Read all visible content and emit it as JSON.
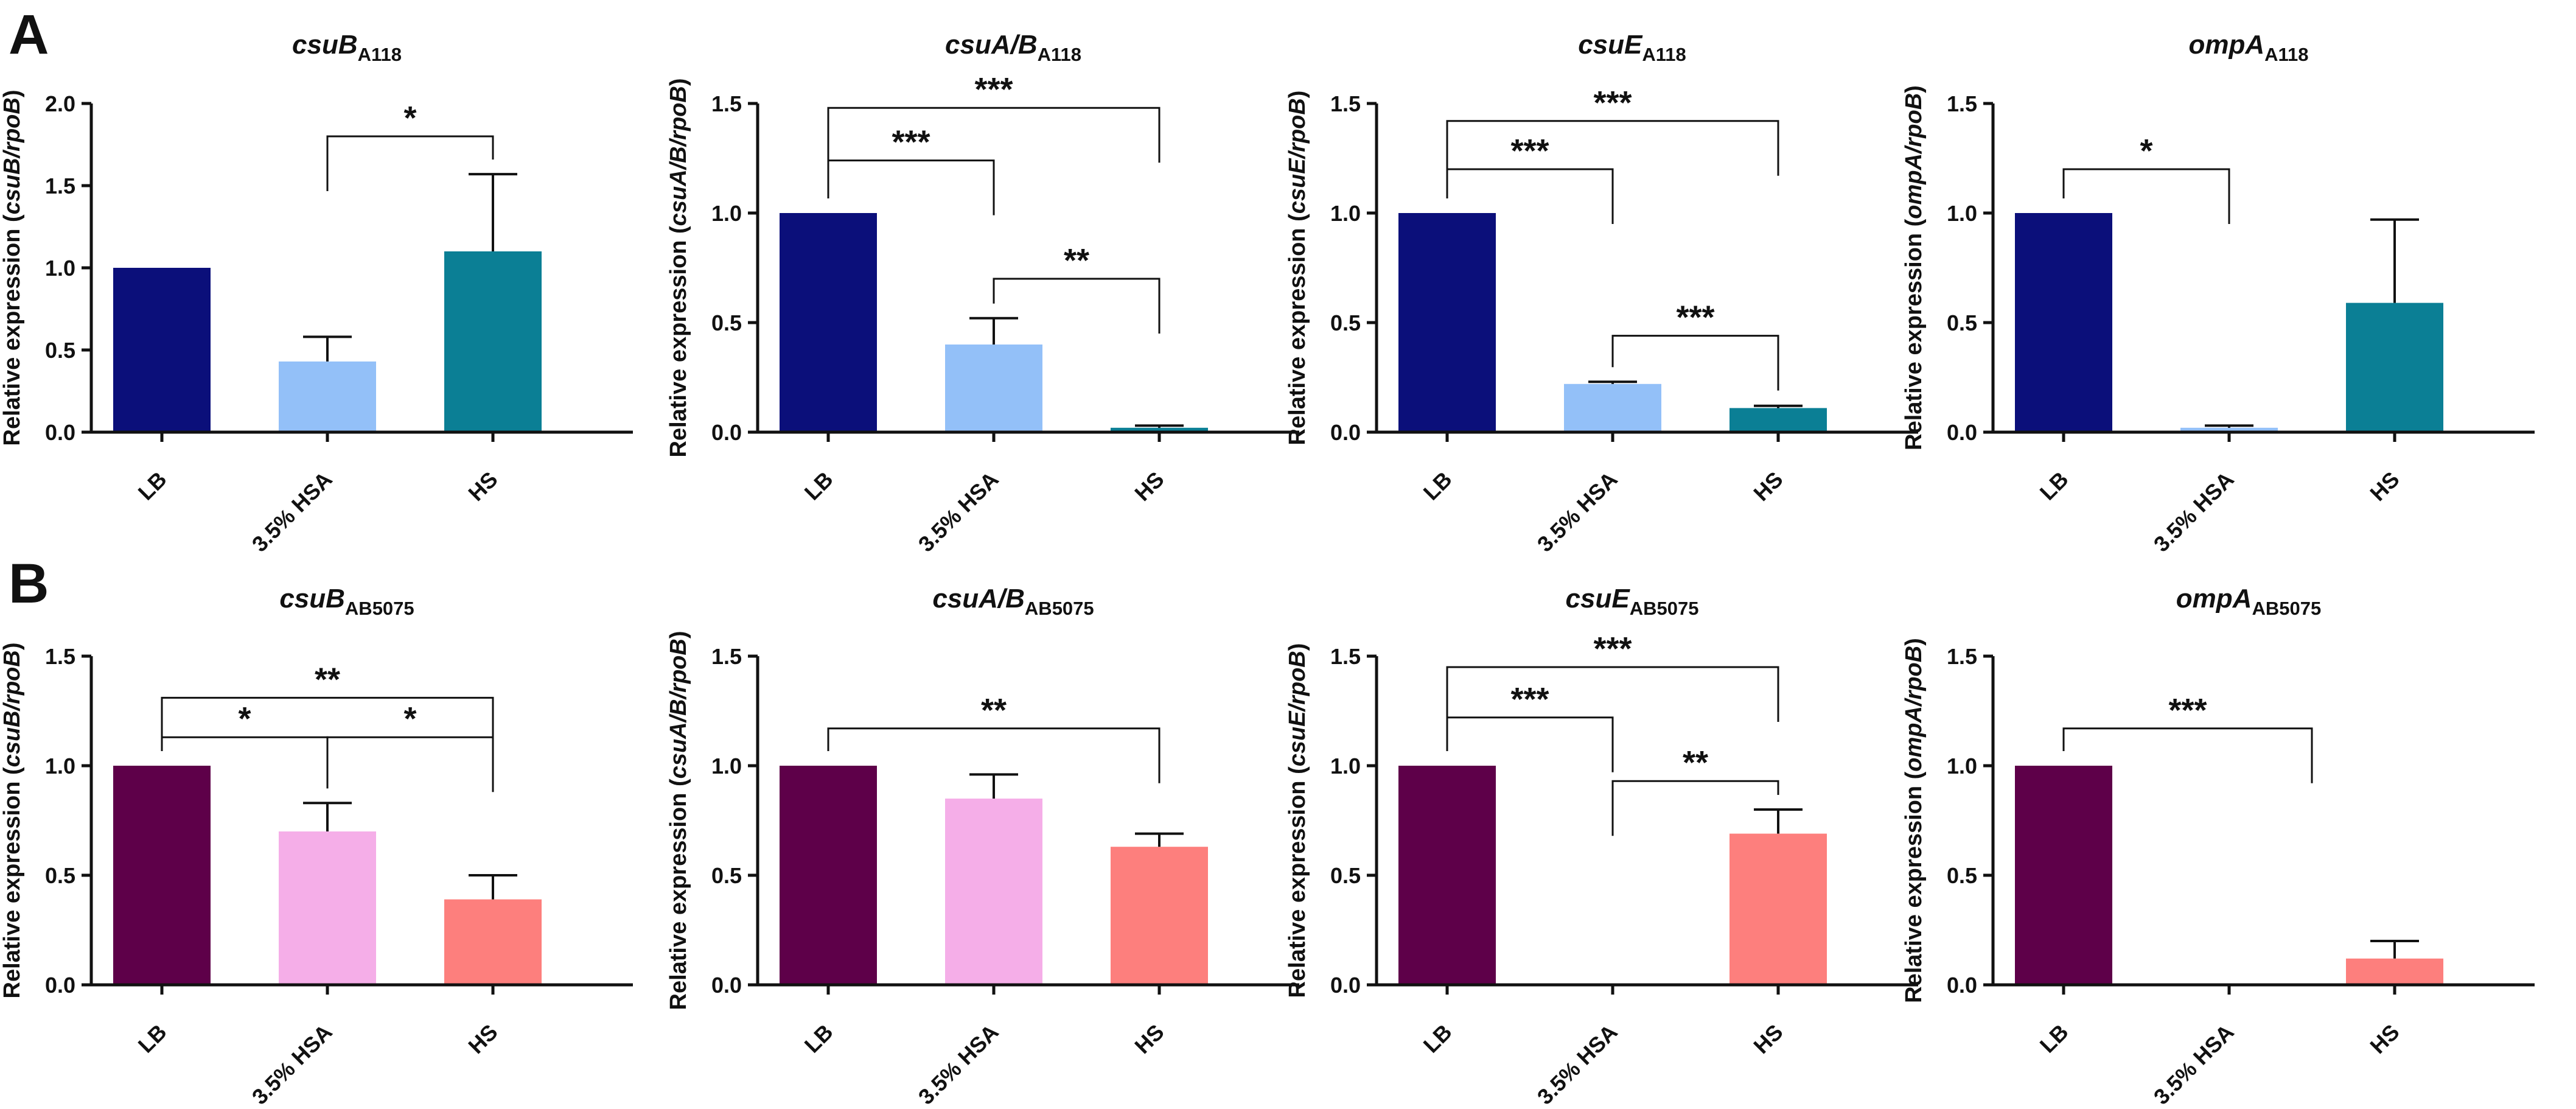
{
  "chart_data": [
    {
      "panel": "A",
      "type": "bar",
      "title": {
        "gene": "csuB",
        "strain": "A118"
      },
      "ylabel": {
        "prefix": "Relative expression (",
        "ratio": "csuB/rpoB",
        "suffix": ")"
      },
      "categories": [
        "LB",
        "3.5% HSA",
        "HS"
      ],
      "values": [
        1.0,
        0.43,
        1.1
      ],
      "errors": [
        0,
        0.15,
        0.47
      ],
      "colors": [
        "#0b0f7a",
        "#93c0f8",
        "#0b7f95"
      ],
      "ylim": [
        0,
        2.0
      ],
      "yticks": [
        "0.0",
        "0.5",
        "1.0",
        "1.5",
        "2.0"
      ],
      "significance": [
        {
          "from": "3.5% HSA",
          "to": "HS",
          "level": 1.8,
          "label": "*"
        }
      ]
    },
    {
      "panel": "",
      "type": "bar",
      "title": {
        "gene": "csuA/B",
        "strain": "A118"
      },
      "ylabel": {
        "prefix": "Relative expression (",
        "ratio": "csuA/B/rpoB",
        "suffix": ")"
      },
      "categories": [
        "LB",
        "3.5% HSA",
        "HS"
      ],
      "values": [
        1.0,
        0.4,
        0.02
      ],
      "errors": [
        0,
        0.12,
        0.01
      ],
      "colors": [
        "#0b0f7a",
        "#93c0f8",
        "#0b7f95"
      ],
      "ylim": [
        0,
        1.5
      ],
      "yticks": [
        "0.0",
        "0.5",
        "1.0",
        "1.5"
      ],
      "significance": [
        {
          "from": "LB",
          "to": "3.5% HSA",
          "level": 1.24,
          "label": "***"
        },
        {
          "from": "3.5% HSA",
          "to": "HS",
          "level": 0.7,
          "label": "**"
        },
        {
          "from": "LB",
          "to": "HS",
          "level": 1.48,
          "label": "***"
        }
      ]
    },
    {
      "panel": "",
      "type": "bar",
      "title": {
        "gene": "csuE",
        "strain": "A118"
      },
      "ylabel": {
        "prefix": "Relative expression (",
        "ratio": "csuE/rpoB",
        "suffix": ")"
      },
      "categories": [
        "LB",
        "3.5% HSA",
        "HS"
      ],
      "values": [
        1.0,
        0.22,
        0.11
      ],
      "errors": [
        0,
        0.01,
        0.01
      ],
      "colors": [
        "#0b0f7a",
        "#93c0f8",
        "#0b7f95"
      ],
      "ylim": [
        0,
        1.5
      ],
      "yticks": [
        "0.0",
        "0.5",
        "1.0",
        "1.5"
      ],
      "significance": [
        {
          "from": "LB",
          "to": "3.5% HSA",
          "level": 1.2,
          "label": "***"
        },
        {
          "from": "3.5% HSA",
          "to": "HS",
          "level": 0.44,
          "label": "***"
        },
        {
          "from": "LB",
          "to": "HS",
          "level": 1.42,
          "label": "***"
        }
      ]
    },
    {
      "panel": "",
      "type": "bar",
      "title": {
        "gene": "ompA",
        "strain": "A118"
      },
      "ylabel": {
        "prefix": "Relative expression (",
        "ratio": "ompA/rpoB",
        "suffix": ")"
      },
      "categories": [
        "LB",
        "3.5% HSA",
        "HS"
      ],
      "values": [
        1.0,
        0.02,
        0.59
      ],
      "errors": [
        0,
        0.01,
        0.38
      ],
      "colors": [
        "#0b0f7a",
        "#93c0f8",
        "#0b7f95"
      ],
      "ylim": [
        0,
        1.5
      ],
      "yticks": [
        "0.0",
        "0.5",
        "1.0",
        "1.5"
      ],
      "significance": [
        {
          "from": "LB",
          "to": "3.5% HSA",
          "level": 1.2,
          "label": "*"
        }
      ]
    },
    {
      "panel": "B",
      "type": "bar",
      "title": {
        "gene": "csuB",
        "strain": "AB5075"
      },
      "ylabel": {
        "prefix": "Relative expression (",
        "ratio": "csuB/rpoB",
        "suffix": ")"
      },
      "categories": [
        "LB",
        "3.5% HSA",
        "HS"
      ],
      "values": [
        1.0,
        0.7,
        0.39
      ],
      "errors": [
        0,
        0.13,
        0.11
      ],
      "colors": [
        "#5e0049",
        "#f5aee8",
        "#fd7f7d"
      ],
      "ylim": [
        0,
        1.5
      ],
      "yticks": [
        "0.0",
        "0.5",
        "1.0",
        "1.5"
      ],
      "significance": [
        {
          "from": "LB",
          "to": "3.5% HSA",
          "level": 1.13,
          "label": "*"
        },
        {
          "from": "3.5% HSA",
          "to": "HS",
          "level": 1.13,
          "label": "*"
        },
        {
          "from": "LB",
          "to": "HS",
          "level": 1.31,
          "label": "**"
        }
      ]
    },
    {
      "panel": "",
      "type": "bar",
      "title": {
        "gene": "csuA/B",
        "strain": "AB5075"
      },
      "ylabel": {
        "prefix": "Relative expression (",
        "ratio": "csuA/B/rpoB",
        "suffix": ")"
      },
      "categories": [
        "LB",
        "3.5% HSA",
        "HS"
      ],
      "values": [
        1.0,
        0.85,
        0.63
      ],
      "errors": [
        0,
        0.11,
        0.06
      ],
      "colors": [
        "#5e0049",
        "#f5aee8",
        "#fd7f7d"
      ],
      "ylim": [
        0,
        1.5
      ],
      "yticks": [
        "0.0",
        "0.5",
        "1.0",
        "1.5"
      ],
      "significance": [
        {
          "from": "LB",
          "to": "HS",
          "level": 1.17,
          "label": "**"
        }
      ]
    },
    {
      "panel": "",
      "type": "bar",
      "title": {
        "gene": "csuE",
        "strain": "AB5075"
      },
      "ylabel": {
        "prefix": "Relative expression (",
        "ratio": "csuE/rpoB",
        "suffix": ")"
      },
      "categories": [
        "LB",
        "3.5% HSA",
        "HS"
      ],
      "values": [
        1.0,
        0,
        0.69
      ],
      "errors": [
        0,
        0,
        0.11
      ],
      "colors": [
        "#5e0049",
        "#f5aee8",
        "#fd7f7d"
      ],
      "ylim": [
        0,
        1.5
      ],
      "yticks": [
        "0.0",
        "0.5",
        "1.0",
        "1.5"
      ],
      "significance": [
        {
          "from": "LB",
          "to": "3.5% HSA",
          "level": 1.22,
          "label": "***"
        },
        {
          "from": "3.5% HSA",
          "to": "HS",
          "level": 0.93,
          "label": "**"
        },
        {
          "from": "LB",
          "to": "HS",
          "level": 1.45,
          "label": "***"
        }
      ]
    },
    {
      "panel": "",
      "type": "bar",
      "title": {
        "gene": "ompA",
        "strain": "AB5075"
      },
      "ylabel": {
        "prefix": "Relative expression (",
        "ratio": "ompA/rpoB",
        "suffix": ")"
      },
      "categories": [
        "LB",
        "3.5% HSA",
        "HS"
      ],
      "values": [
        1.0,
        0,
        0.12
      ],
      "errors": [
        0,
        0,
        0.08
      ],
      "colors": [
        "#5e0049",
        "#f5aee8",
        "#fd7f7d"
      ],
      "ylim": [
        0,
        1.5
      ],
      "yticks": [
        "0.0",
        "0.5",
        "1.0",
        "1.5"
      ],
      "significance": [
        {
          "from": "LB",
          "to": "3.5% HSA / HS",
          "level": 1.17,
          "label": "***"
        }
      ]
    }
  ]
}
